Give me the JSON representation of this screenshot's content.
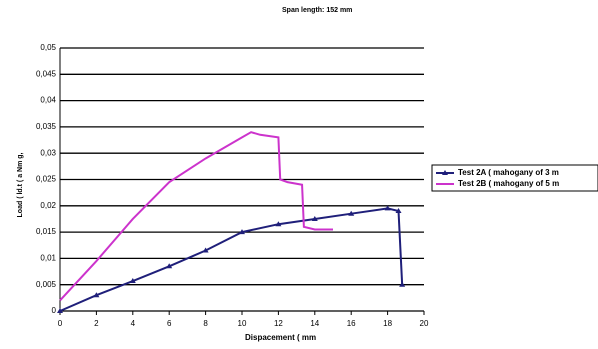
{
  "chart_data": {
    "type": "line",
    "title": "Span  length:  152 mm",
    "x_label": "Dispacement  (  mm",
    "y_label": "Load ( ld.t ( a Nm g,",
    "series": [
      {
        "name": "Test  2A  (  mahogany  of  3  m",
        "color": "#1f1f7a",
        "marker": "triangle",
        "x": [
          0,
          2,
          4,
          6,
          8,
          10,
          12,
          14,
          16,
          18,
          18.6,
          18.8
        ],
        "values": [
          0,
          0.003,
          0.0057,
          0.0085,
          0.0115,
          0.015,
          0.0165,
          0.0175,
          0.0185,
          0.0195,
          0.019,
          0.005
        ]
      },
      {
        "name": "Test  2B  (  mahogany  of  5  m",
        "color": "#cc33cc",
        "marker": "none",
        "x": [
          0,
          2,
          4,
          6,
          8,
          10,
          10.5,
          11,
          12,
          12.1,
          12.5,
          13.3,
          13.4,
          14,
          15
        ],
        "values": [
          0.002,
          0.0095,
          0.0175,
          0.0245,
          0.029,
          0.033,
          0.034,
          0.0335,
          0.033,
          0.025,
          0.0245,
          0.024,
          0.016,
          0.0155,
          0.0155
        ]
      }
    ],
    "xlim": [
      0,
      20
    ],
    "xticks": [
      0,
      2,
      4,
      6,
      8,
      10,
      12,
      14,
      16,
      18,
      20
    ],
    "ylim": [
      0,
      0.05
    ],
    "yticks": [
      0,
      {
        "value": 0.005,
        "label": "0,005"
      },
      {
        "value": 0.01,
        "label": "0,01"
      },
      {
        "value": 0.015,
        "label": "0,015"
      },
      {
        "value": 0.02,
        "label": "0,02"
      },
      {
        "value": 0.025,
        "label": "0,025"
      },
      {
        "value": 0.03,
        "label": "0,03"
      },
      {
        "value": 0.035,
        "label": "0,035"
      },
      {
        "value": 0.04,
        "label": "0,04"
      },
      {
        "value": 0.045,
        "label": "0,045"
      },
      {
        "value": 0.05,
        "label": "0,05"
      }
    ],
    "grid": true,
    "legend": "right"
  }
}
